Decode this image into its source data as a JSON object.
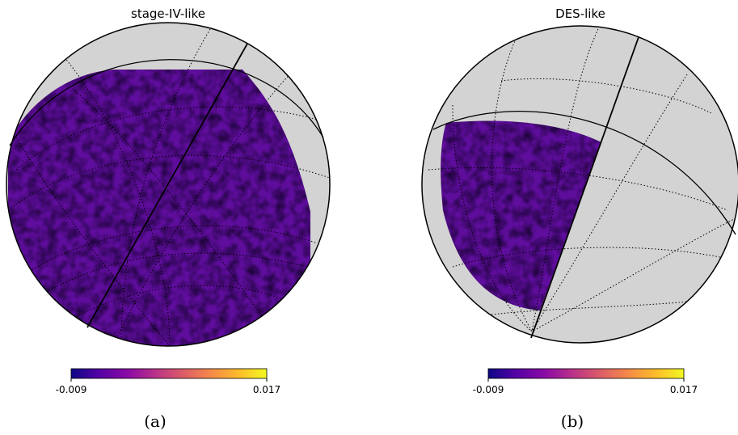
{
  "panels": [
    {
      "title": "stage-IV-like",
      "colorbar": {
        "min_label": "-0.009",
        "max_label": "0.017"
      },
      "caption": "(a)"
    },
    {
      "title": "DES-like",
      "colorbar": {
        "min_label": "-0.009",
        "max_label": "0.017"
      },
      "caption": "(b)"
    }
  ],
  "colors": {
    "masked": "#d3d3d3",
    "colormap": [
      "#0d0887",
      "#5302a3",
      "#8b0aa5",
      "#b83289",
      "#db5c68",
      "#f48849",
      "#febd2a",
      "#f0f921"
    ]
  }
}
